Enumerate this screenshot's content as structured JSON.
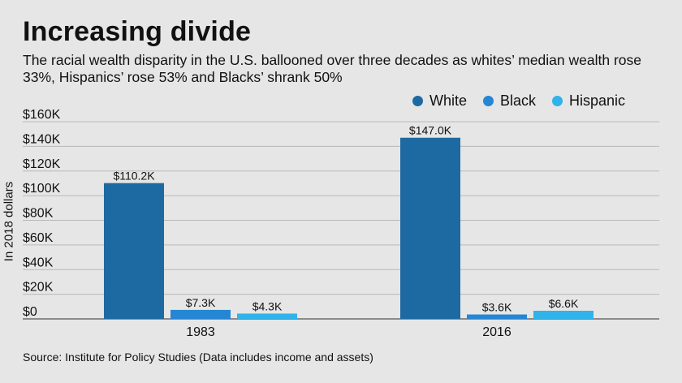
{
  "title": "Increasing divide",
  "subtitle": "The racial wealth disparity in the U.S. ballooned over three decades as whites’ median wealth rose 33%, Hispanics’ rose 53% and Blacks’ shrank 50%",
  "source": "Source: Institute for Policy Studies (Data includes income and assets)",
  "legend": [
    {
      "label": "White",
      "color": "#1d6aa3"
    },
    {
      "label": "Black",
      "color": "#2586d4"
    },
    {
      "label": "Hispanic",
      "color": "#2fb3ea"
    }
  ],
  "chart_data": {
    "type": "bar",
    "categories": [
      "1983",
      "2016"
    ],
    "series": [
      {
        "name": "White",
        "values": [
          110.2,
          147.0
        ],
        "labels": [
          "$110.2K",
          "$147.0K"
        ],
        "color": "#1d6aa3"
      },
      {
        "name": "Black",
        "values": [
          7.3,
          3.6
        ],
        "labels": [
          "$7.3K",
          "$3.6K"
        ],
        "color": "#2586d4"
      },
      {
        "name": "Hispanic",
        "values": [
          4.3,
          6.6
        ],
        "labels": [
          "$4.3K",
          "$6.6K"
        ],
        "color": "#2fb3ea"
      }
    ],
    "ylabel": "In 2018 dollars",
    "ylim": [
      0,
      160
    ],
    "yticks": [
      0,
      20,
      40,
      60,
      80,
      100,
      120,
      140,
      160
    ],
    "ytick_labels": [
      "$0",
      "$20K",
      "$40K",
      "$60K",
      "$80K",
      "$100K",
      "$120K",
      "$140K",
      "$160K"
    ],
    "grid": true,
    "legend_position": "top-right"
  }
}
